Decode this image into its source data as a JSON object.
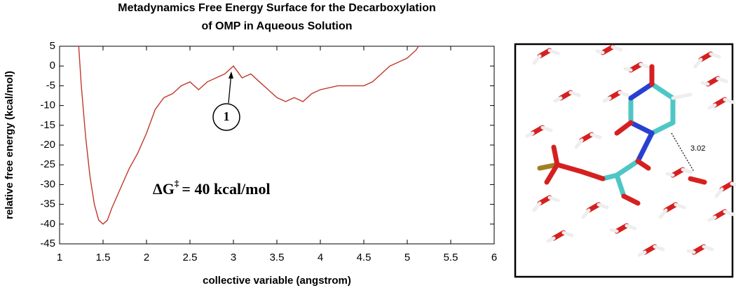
{
  "chart_data": {
    "type": "line",
    "title": [
      "Metadynamics Free Energy Surface for the Decarboxylation",
      "of OMP in Aqueous Solution"
    ],
    "xlabel": "collective variable (angstrom)",
    "ylabel": "relative free energy (kcal/mol)",
    "x": [
      1.22,
      1.25,
      1.3,
      1.35,
      1.4,
      1.45,
      1.5,
      1.55,
      1.6,
      1.7,
      1.8,
      1.9,
      2.0,
      2.1,
      2.2,
      2.3,
      2.4,
      2.5,
      2.6,
      2.7,
      2.8,
      2.9,
      3.0,
      3.1,
      3.2,
      3.3,
      3.4,
      3.5,
      3.6,
      3.7,
      3.8,
      3.9,
      4.0,
      4.2,
      4.4,
      4.5,
      4.6,
      4.7,
      4.8,
      4.9,
      5.0,
      5.1,
      5.13
    ],
    "values": [
      5,
      -5,
      -18,
      -28,
      -35,
      -39,
      -40,
      -39,
      -36,
      -31,
      -26,
      -22,
      -17,
      -11,
      -8,
      -7,
      -5,
      -4,
      -6,
      -4,
      -3,
      -2,
      0,
      -3,
      -2,
      -4,
      -6,
      -8,
      -9,
      -8,
      -9,
      -7,
      -6,
      -5,
      -5,
      -5,
      -4,
      -2,
      0,
      1,
      2,
      4,
      5
    ],
    "color": "#c0392b",
    "xlim": [
      1,
      6
    ],
    "xticks": [
      1,
      1.5,
      2,
      2.5,
      3,
      3.5,
      4,
      4.5,
      5,
      5.5,
      6
    ],
    "ylim": [
      -45,
      5
    ],
    "yticks": [
      5,
      0,
      -5,
      -10,
      -15,
      -20,
      -25,
      -30,
      -35,
      -40,
      -45
    ],
    "grid": false,
    "annotations": {
      "marker": "1",
      "barrier_symbol": "ΔG",
      "barrier_superscript": "‡",
      "barrier_text": "= 40 kcal/mol"
    }
  },
  "image": {
    "distance_label": "3.02"
  }
}
